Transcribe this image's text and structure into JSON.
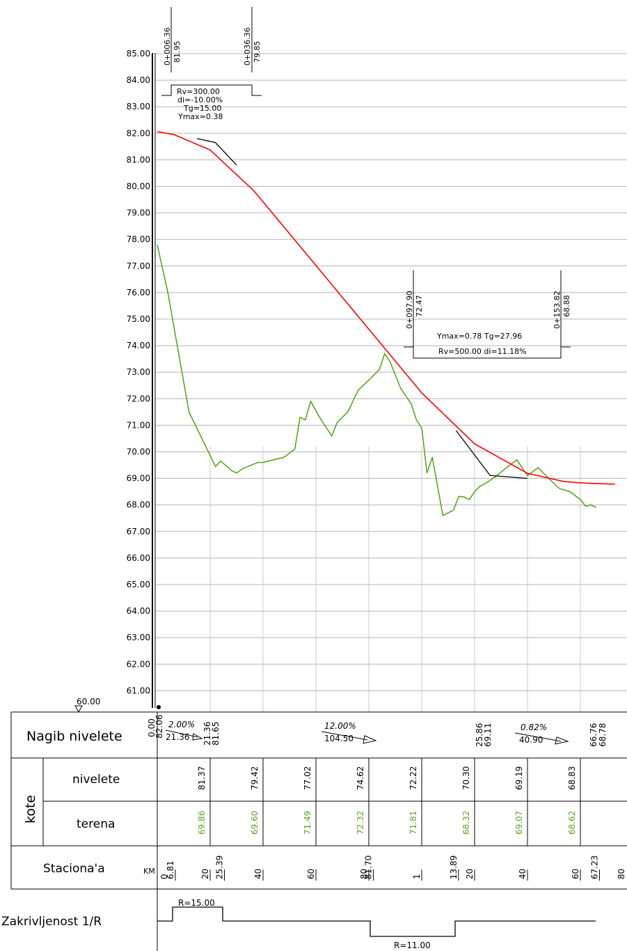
{
  "chart_data": {
    "type": "line",
    "y_ticks": [
      "85.00",
      "84.00",
      "83.00",
      "82.00",
      "81.00",
      "80.00",
      "79.00",
      "78.00",
      "77.00",
      "76.00",
      "75.00",
      "74.00",
      "73.00",
      "72.00",
      "71.00",
      "70.00",
      "69.00",
      "68.00",
      "67.00",
      "66.00",
      "65.00",
      "64.00",
      "63.00",
      "62.00",
      "61.00"
    ],
    "ylim": [
      60,
      85
    ],
    "datum": "60.00",
    "stations_m": [
      0,
      20,
      40,
      60,
      80,
      100,
      120,
      140,
      160,
      173
    ],
    "series": [
      {
        "key": "nivelete",
        "color": "#ff0000",
        "x": [
          0,
          6.36,
          20,
          36.36,
          40,
          60,
          80,
          97.9,
          100,
          120,
          140,
          153.82,
          160,
          167,
          173
        ],
        "y": [
          82.06,
          81.95,
          81.37,
          79.85,
          79.42,
          77.02,
          74.62,
          72.47,
          72.22,
          70.3,
          69.19,
          68.88,
          68.83,
          68.8,
          68.78
        ]
      },
      {
        "key": "terena",
        "color": "#5aa51f",
        "x": [
          0,
          4,
          12,
          20,
          22,
          24,
          28,
          30,
          32,
          38,
          40,
          44,
          48,
          52,
          54,
          56,
          58,
          62,
          66,
          68,
          72,
          76,
          80,
          84,
          86,
          88,
          90,
          92,
          94,
          96,
          98,
          100,
          102,
          104,
          108,
          112,
          114,
          116,
          118,
          120,
          122,
          124,
          128,
          132,
          136,
          140,
          144,
          148,
          152,
          156,
          160,
          162,
          164,
          166
        ],
        "y": [
          77.8,
          76.0,
          71.5,
          69.86,
          69.45,
          69.65,
          69.3,
          69.2,
          69.35,
          69.6,
          69.6,
          69.7,
          69.8,
          70.1,
          71.3,
          71.2,
          71.9,
          71.2,
          70.6,
          71.1,
          71.5,
          72.32,
          72.7,
          73.1,
          73.7,
          73.4,
          72.9,
          72.4,
          72.1,
          71.81,
          71.2,
          70.9,
          69.2,
          69.8,
          67.6,
          67.8,
          68.32,
          68.3,
          68.2,
          68.5,
          68.7,
          68.8,
          69.07,
          69.4,
          69.7,
          69.1,
          69.4,
          69.0,
          68.62,
          68.5,
          68.2,
          67.95,
          68.0,
          67.9
        ]
      },
      {
        "key": "tangent-1",
        "color": "#000000",
        "x": [
          15,
          22,
          30
        ],
        "y": [
          81.8,
          81.65,
          80.8
        ]
      },
      {
        "key": "tangent-2",
        "color": "#000000",
        "x": [
          113,
          125.86,
          140
        ],
        "y": [
          70.8,
          69.11,
          69.0
        ]
      }
    ]
  },
  "top_labels": {
    "pvi1_station": "0+006.36",
    "pvi1_elev": "81.95",
    "pvi2_station": "0+036.36",
    "pvi2_elev": "79.85",
    "curve1": {
      "rv": "Rv=300.00",
      "di": "di=-10.00%",
      "tg": "Tg=15.00",
      "ymax": "Ymax=0.38"
    },
    "pvi3_station": "0+097.90",
    "pvi3_elev": "72.47",
    "pvi4_station": "0+153.82",
    "pvi4_elev": "68.88",
    "curve2": {
      "ymax_tg": "Ymax=0.78  Tg=27.96",
      "rv_di": "Rv=500.00  di=11.18%"
    }
  },
  "table": {
    "row_nagib": {
      "label": "Nagib nivelete",
      "start_a": "0.00",
      "start_b": "82.06",
      "g1_top": "2.00%",
      "g1_bot": "21.36",
      "p1_a": "21.36",
      "p1_b": "81.65",
      "g2_top": "12.00%",
      "g2_bot": "104.50",
      "p2_a": "25.86",
      "p2_b": "69.11",
      "g3_top": "0.82%",
      "g3_bot": "40.90",
      "end_a": "66.76",
      "end_b": "68.78"
    },
    "kote_label": "kote",
    "nivelete_label": "nivelete",
    "terena_label": "terena",
    "nivelete_values": [
      "81.37",
      "79.42",
      "77.02",
      "74.62",
      "72.22",
      "70.30",
      "69.19",
      "68.83"
    ],
    "terena_values": [
      "69.86",
      "69.60",
      "71.49",
      "72.32",
      "71.81",
      "68.32",
      "69.07",
      "68.62"
    ],
    "stacionaza_label": "Staciona'a",
    "km_label": "KM",
    "km_value": "0",
    "stac_marks": [
      "6.81",
      "20",
      "25.39",
      "40",
      "60",
      "80",
      "81.70",
      "1",
      "13.89",
      "20",
      "40",
      "60",
      "67.23",
      "80"
    ],
    "curv_label": "Zakrivljenost 1/R",
    "curv_r1": "R=15.00",
    "curv_r2": "R=11.00"
  }
}
